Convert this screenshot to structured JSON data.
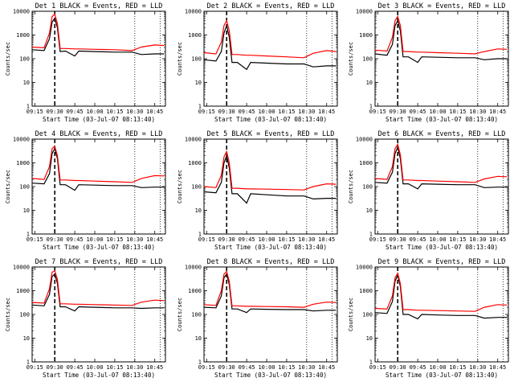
{
  "colors": {
    "events": "#000000",
    "lld": "#ff0000",
    "background": "#ffffff"
  },
  "ylabel": "Counts/sec",
  "xlabel": "Start Time (03-Jul-07 08:13:40)",
  "x_tick_labels": [
    "09:15",
    "09:30",
    "09:45",
    "10:00",
    "10:15",
    "10:30",
    "10:45"
  ],
  "y_tick_labels": [
    "1",
    "10",
    "100",
    "1000",
    "10000"
  ],
  "chart_data": [
    {
      "type": "line",
      "title": "Det 1 BLACK = Events, RED = LLD",
      "xlabel": "Start Time (03-Jul-07 08:13:40)",
      "ylabel": "Counts/sec",
      "y_scale": "log",
      "ylim": [
        1,
        10000
      ],
      "xlim": [
        "09:13",
        "10:53"
      ],
      "x": [
        "09:13",
        "09:22",
        "09:26",
        "09:28",
        "09:30",
        "09:32",
        "09:34",
        "09:38",
        "09:45",
        "09:48",
        "10:00",
        "10:15",
        "10:28",
        "10:35",
        "10:45",
        "10:52"
      ],
      "series": [
        {
          "name": "Events",
          "values": [
            240,
            220,
            700,
            3500,
            5000,
            2000,
            200,
            210,
            130,
            210,
            200,
            190,
            190,
            150,
            160,
            160
          ]
        },
        {
          "name": "LLD",
          "values": [
            310,
            290,
            1200,
            6000,
            7500,
            3000,
            270,
            270,
            260,
            260,
            250,
            240,
            220,
            310,
            380,
            360
          ]
        }
      ]
    },
    {
      "type": "line",
      "title": "Det 2 BLACK = Events, RED = LLD",
      "xlabel": "Start Time (03-Jul-07 08:13:40)",
      "ylabel": "Counts/sec",
      "y_scale": "log",
      "ylim": [
        1,
        10000
      ],
      "xlim": [
        "09:13",
        "10:53"
      ],
      "x": [
        "09:13",
        "09:22",
        "09:26",
        "09:28",
        "09:30",
        "09:32",
        "09:34",
        "09:38",
        "09:45",
        "09:48",
        "10:00",
        "10:15",
        "10:28",
        "10:35",
        "10:45",
        "10:52"
      ],
      "series": [
        {
          "name": "Events",
          "values": [
            90,
            80,
            200,
            1200,
            2500,
            800,
            70,
            70,
            35,
            70,
            65,
            60,
            60,
            45,
            50,
            50
          ]
        },
        {
          "name": "LLD",
          "values": [
            180,
            160,
            500,
            2500,
            4000,
            1500,
            150,
            150,
            140,
            140,
            130,
            120,
            110,
            170,
            220,
            200
          ]
        }
      ]
    },
    {
      "type": "line",
      "title": "Det 3 BLACK = Events, RED = LLD",
      "xlabel": "Start Time (03-Jul-07 08:13:40)",
      "ylabel": "Counts/sec",
      "y_scale": "log",
      "ylim": [
        1,
        10000
      ],
      "xlim": [
        "09:13",
        "10:53"
      ],
      "x": [
        "09:13",
        "09:22",
        "09:26",
        "09:28",
        "09:30",
        "09:32",
        "09:34",
        "09:38",
        "09:45",
        "09:48",
        "10:00",
        "10:15",
        "10:28",
        "10:35",
        "10:45",
        "10:52"
      ],
      "series": [
        {
          "name": "Events",
          "values": [
            160,
            140,
            400,
            2500,
            4000,
            1500,
            120,
            120,
            70,
            120,
            115,
            110,
            110,
            90,
            100,
            100
          ]
        },
        {
          "name": "LLD",
          "values": [
            230,
            210,
            800,
            4000,
            6000,
            2500,
            200,
            200,
            190,
            190,
            180,
            170,
            160,
            200,
            260,
            250
          ]
        }
      ]
    },
    {
      "type": "line",
      "title": "Det 4 BLACK = Events, RED = LLD",
      "xlabel": "Start Time (03-Jul-07 08:13:40)",
      "ylabel": "Counts/sec",
      "y_scale": "log",
      "ylim": [
        1,
        10000
      ],
      "xlim": [
        "09:13",
        "10:53"
      ],
      "x": [
        "09:13",
        "09:22",
        "09:26",
        "09:28",
        "09:30",
        "09:32",
        "09:34",
        "09:38",
        "09:45",
        "09:48",
        "10:00",
        "10:15",
        "10:28",
        "10:35",
        "10:45",
        "10:52"
      ],
      "series": [
        {
          "name": "Events",
          "values": [
            140,
            130,
            350,
            2500,
            4000,
            1500,
            120,
            120,
            70,
            120,
            115,
            110,
            110,
            90,
            95,
            95
          ]
        },
        {
          "name": "LLD",
          "values": [
            220,
            200,
            700,
            4000,
            5000,
            2000,
            190,
            190,
            180,
            180,
            170,
            160,
            150,
            220,
            290,
            280
          ]
        }
      ]
    },
    {
      "type": "line",
      "title": "Det 5 BLACK = Events, RED = LLD",
      "xlabel": "Start Time (03-Jul-07 08:13:40)",
      "ylabel": "Counts/sec",
      "y_scale": "log",
      "ylim": [
        1,
        10000
      ],
      "xlim": [
        "09:13",
        "10:53"
      ],
      "x": [
        "09:13",
        "09:22",
        "09:26",
        "09:28",
        "09:30",
        "09:32",
        "09:34",
        "09:38",
        "09:45",
        "09:48",
        "10:00",
        "10:15",
        "10:28",
        "10:35",
        "10:45",
        "10:52"
      ],
      "series": [
        {
          "name": "Events",
          "values": [
            60,
            55,
            150,
            1000,
            2000,
            600,
            50,
            50,
            20,
            50,
            45,
            40,
            40,
            30,
            32,
            32
          ]
        },
        {
          "name": "LLD",
          "values": [
            100,
            90,
            300,
            1800,
            3000,
            1000,
            85,
            85,
            80,
            80,
            78,
            75,
            72,
            100,
            130,
            125
          ]
        }
      ]
    },
    {
      "type": "line",
      "title": "Det 6 BLACK = Events, RED = LLD",
      "xlabel": "Start Time (03-Jul-07 08:13:40)",
      "ylabel": "Counts/sec",
      "y_scale": "log",
      "ylim": [
        1,
        10000
      ],
      "xlim": [
        "09:13",
        "10:53"
      ],
      "x": [
        "09:13",
        "09:22",
        "09:26",
        "09:28",
        "09:30",
        "09:32",
        "09:34",
        "09:38",
        "09:45",
        "09:48",
        "10:00",
        "10:15",
        "10:28",
        "10:35",
        "10:45",
        "10:52"
      ],
      "series": [
        {
          "name": "Events",
          "values": [
            150,
            140,
            400,
            2500,
            4500,
            1500,
            130,
            130,
            80,
            130,
            125,
            120,
            120,
            90,
            95,
            95
          ]
        },
        {
          "name": "LLD",
          "values": [
            220,
            200,
            700,
            4000,
            6000,
            2200,
            190,
            190,
            180,
            180,
            170,
            160,
            150,
            210,
            270,
            260
          ]
        }
      ]
    },
    {
      "type": "line",
      "title": "Det 7 BLACK = Events, RED = LLD",
      "xlabel": "Start Time (03-Jul-07 08:13:40)",
      "ylabel": "Counts/sec",
      "y_scale": "log",
      "ylim": [
        1,
        10000
      ],
      "xlim": [
        "09:13",
        "10:53"
      ],
      "x": [
        "09:13",
        "09:22",
        "09:26",
        "09:28",
        "09:30",
        "09:32",
        "09:34",
        "09:38",
        "09:45",
        "09:48",
        "10:00",
        "10:15",
        "10:28",
        "10:35",
        "10:45",
        "10:52"
      ],
      "series": [
        {
          "name": "Events",
          "values": [
            250,
            230,
            700,
            4000,
            5000,
            2000,
            210,
            210,
            140,
            210,
            200,
            190,
            190,
            180,
            190,
            190
          ]
        },
        {
          "name": "LLD",
          "values": [
            320,
            300,
            1200,
            6000,
            7000,
            3000,
            280,
            280,
            270,
            270,
            260,
            250,
            240,
            330,
            400,
            380
          ]
        }
      ]
    },
    {
      "type": "line",
      "title": "Det 8 BLACK = Events, RED = LLD",
      "xlabel": "Start Time (03-Jul-07 08:13:40)",
      "ylabel": "Counts/sec",
      "y_scale": "log",
      "ylim": [
        1,
        10000
      ],
      "xlim": [
        "09:13",
        "10:53"
      ],
      "x": [
        "09:13",
        "09:22",
        "09:26",
        "09:28",
        "09:30",
        "09:32",
        "09:34",
        "09:38",
        "09:45",
        "09:48",
        "10:00",
        "10:15",
        "10:28",
        "10:35",
        "10:45",
        "10:52"
      ],
      "series": [
        {
          "name": "Events",
          "values": [
            200,
            190,
            600,
            3500,
            5000,
            1800,
            170,
            170,
            120,
            170,
            165,
            160,
            160,
            140,
            150,
            150
          ]
        },
        {
          "name": "LLD",
          "values": [
            260,
            240,
            1000,
            5000,
            6500,
            2500,
            230,
            230,
            220,
            220,
            215,
            210,
            200,
            270,
            330,
            320
          ]
        }
      ]
    },
    {
      "type": "line",
      "title": "Det 9 BLACK = Events, RED = LLD",
      "xlabel": "Start Time (03-Jul-07 08:13:40)",
      "ylabel": "Counts/sec",
      "y_scale": "log",
      "ylim": [
        1,
        10000
      ],
      "xlim": [
        "09:13",
        "10:53"
      ],
      "x": [
        "09:13",
        "09:22",
        "09:26",
        "09:28",
        "09:30",
        "09:32",
        "09:34",
        "09:38",
        "09:45",
        "09:48",
        "10:00",
        "10:15",
        "10:28",
        "10:35",
        "10:45",
        "10:52"
      ],
      "series": [
        {
          "name": "Events",
          "values": [
            120,
            110,
            350,
            2500,
            4500,
            1500,
            100,
            100,
            65,
            100,
            95,
            90,
            90,
            70,
            75,
            75
          ]
        },
        {
          "name": "LLD",
          "values": [
            180,
            170,
            600,
            3500,
            5500,
            2000,
            160,
            160,
            150,
            150,
            145,
            140,
            135,
            200,
            260,
            250
          ]
        }
      ]
    }
  ]
}
